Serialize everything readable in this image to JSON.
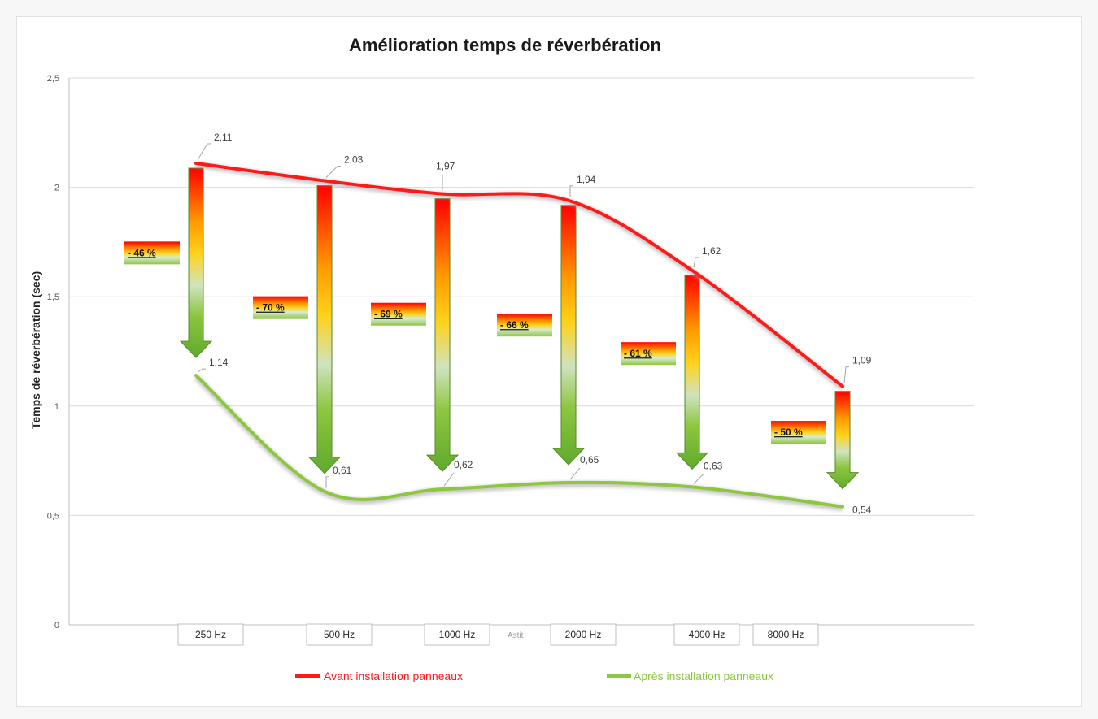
{
  "chart_data": {
    "type": "line",
    "title": "Amélioration temps de réverbération",
    "ylabel": "Temps de réverbération (sec)",
    "xlabel": "",
    "ylim": [
      0,
      2.5
    ],
    "yticks": [
      0,
      0.5,
      1,
      1.5,
      2,
      2.5
    ],
    "ytick_labels": [
      "0",
      "0,5",
      "1",
      "1,5",
      "2",
      "2,5"
    ],
    "categories": [
      "250 Hz",
      "500 Hz",
      "1000 Hz",
      "2000 Hz",
      "4000 Hz",
      "8000 Hz"
    ],
    "grid": true,
    "legend_position": "bottom",
    "series": [
      {
        "name": "Avant installation panneaux",
        "color": "#ff1a1a",
        "values": [
          2.11,
          2.03,
          1.97,
          1.94,
          1.62,
          1.09
        ],
        "value_labels": [
          "2,11",
          "2,03",
          "1,97",
          "1,94",
          "1,62",
          "1,09"
        ]
      },
      {
        "name": "Après installation panneaux",
        "color": "#8dc63f",
        "values": [
          1.14,
          0.61,
          0.62,
          0.65,
          0.63,
          0.54
        ],
        "value_labels": [
          "1,14",
          "0,61",
          "0,62",
          "0,65",
          "0,63",
          "0,54"
        ]
      }
    ],
    "reductions": [
      "- 46 %",
      "- 70 %",
      "- 69 %",
      "- 66 %",
      "- 61 %",
      "- 50 %"
    ],
    "annotation": "Astit"
  }
}
